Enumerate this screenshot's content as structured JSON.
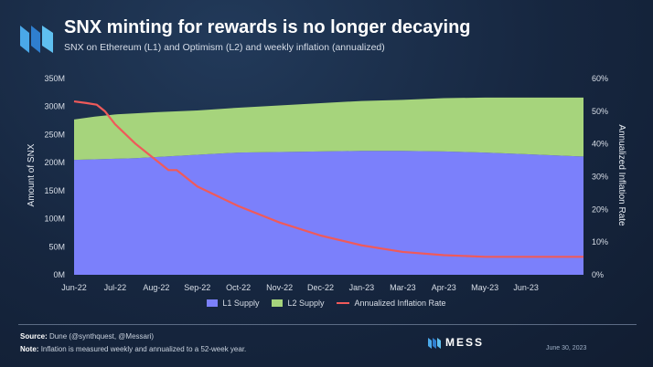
{
  "header": {
    "title": "SNX minting for rewards is no longer decaying",
    "subtitle": "SNX on Ethereum (L1) and Optimism (L2) and weekly inflation (annualized)"
  },
  "chart_data": {
    "type": "area",
    "xlabel": "",
    "ylabel": "Amount of SNX",
    "y2label": "Annualized Inflation Rate",
    "categories": [
      "Jun-22",
      "Jul-22",
      "Aug-22",
      "Sep-22",
      "Oct-22",
      "Nov-22",
      "Dec-22",
      "Jan-23",
      "Mar-23",
      "Apr-23",
      "May-23",
      "Jun-23"
    ],
    "y_ticks": [
      "0M",
      "50M",
      "100M",
      "150M",
      "200M",
      "250M",
      "300M",
      "350M"
    ],
    "y2_ticks": [
      "0%",
      "10%",
      "20%",
      "30%",
      "40%",
      "50%",
      "60%"
    ],
    "ylim": [
      0,
      350
    ],
    "y2lim": [
      0,
      60
    ],
    "x_index_range": [
      0,
      12.4
    ],
    "series": [
      {
        "name": "L1 Supply",
        "kind": "stacked-area",
        "axis": "left",
        "color": "#7b80fb",
        "x": [
          0,
          0.5,
          1,
          1.5,
          2,
          3,
          4,
          5,
          6,
          7,
          8,
          9,
          10,
          11,
          12,
          12.4
        ],
        "values": [
          205,
          206,
          207,
          208,
          210,
          214,
          218,
          219,
          220,
          221,
          221,
          220,
          218,
          215,
          212,
          211
        ]
      },
      {
        "name": "L2 Supply",
        "kind": "stacked-area",
        "axis": "left",
        "color": "#a6d47c",
        "x": [
          0,
          0.5,
          1,
          1.5,
          2,
          3,
          4,
          5,
          6,
          7,
          8,
          9,
          10,
          11,
          12,
          12.4
        ],
        "values": [
          72,
          76,
          79,
          80,
          80,
          79,
          80,
          83,
          86,
          89,
          91,
          95,
          98,
          101,
          104,
          105
        ]
      },
      {
        "name": "Annualized Inflation Rate",
        "kind": "line",
        "axis": "right",
        "color": "#ef5a5a",
        "x": [
          0,
          0.3,
          0.55,
          0.75,
          1,
          1.5,
          2,
          2.3,
          2.5,
          3,
          3.5,
          4,
          5,
          6,
          7,
          8,
          9,
          10,
          11,
          11.5,
          12,
          12.4
        ],
        "values": [
          53,
          52.5,
          52,
          50,
          46,
          40,
          35,
          32,
          32,
          27,
          24,
          21,
          16,
          12,
          9,
          7,
          6,
          5.5,
          5.5,
          5.5,
          5.5,
          5.5
        ]
      }
    ],
    "legend": "bottom-center",
    "grid": false
  },
  "legend_items": [
    {
      "label": "L1 Supply",
      "color": "#7b80fb"
    },
    {
      "label": "L2 Supply",
      "color": "#a6d47c"
    },
    {
      "label": "Annualized Inflation Rate",
      "color": "#ef5a5a"
    }
  ],
  "footer": {
    "source_label": "Source:",
    "source_text": "Dune (@synthquest, @Messari)",
    "note_label": "Note:",
    "note_text": "Inflation is measured weekly and annualized to a 52-week year.",
    "brand": "MESS",
    "date": "June 30, 2023"
  }
}
